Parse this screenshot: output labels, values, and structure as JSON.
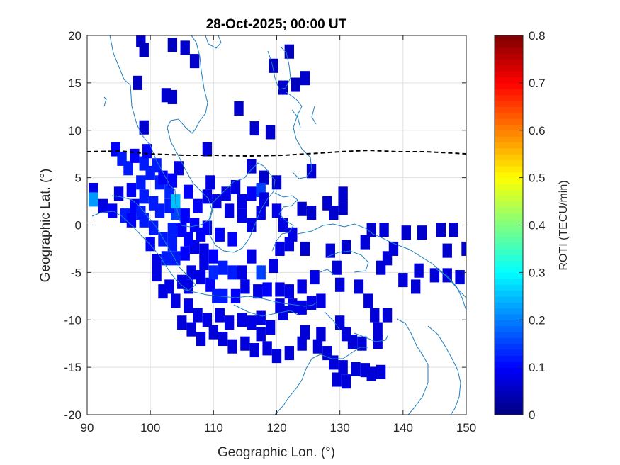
{
  "chart_data": {
    "type": "heatmap",
    "title": "28-Oct-2025; 00:00 UT",
    "xlabel": "Geographic Lon. (°)",
    "ylabel": "Geographic Lat. (°)",
    "xlim": [
      90,
      150
    ],
    "ylim": [
      -20,
      20
    ],
    "xticks": [
      90,
      100,
      110,
      120,
      130,
      140,
      150
    ],
    "yticks": [
      -20,
      -15,
      -10,
      -5,
      0,
      5,
      10,
      15,
      20
    ],
    "grid": true,
    "colorbar": {
      "label": "ROTI (TECU/min)",
      "colormap": "jet",
      "range": [
        0,
        0.8
      ],
      "ticks": [
        "0",
        "0.1",
        "0.2",
        "0.3",
        "0.4",
        "0.5",
        "0.6",
        "0.7",
        "0.8"
      ]
    },
    "cell_size_deg": [
      1.5,
      1.5
    ],
    "cells": [
      [
        98.5,
        19.5,
        0.06
      ],
      [
        99,
        18.5,
        0.05
      ],
      [
        103.5,
        19,
        0.05
      ],
      [
        105.5,
        18.7,
        0.06
      ],
      [
        107,
        17.3,
        0.06
      ],
      [
        98,
        15,
        0.05
      ],
      [
        102.5,
        13.7,
        0.06
      ],
      [
        103.5,
        13.5,
        0.06
      ],
      [
        99,
        10.3,
        0.06
      ],
      [
        109,
        8,
        0.07
      ],
      [
        116.5,
        10.2,
        0.06
      ],
      [
        114,
        12.3,
        0.06
      ],
      [
        119.5,
        16.8,
        0.05
      ],
      [
        122,
        18.3,
        0.05
      ],
      [
        123,
        14.8,
        0.05
      ],
      [
        121,
        14.5,
        0.06
      ],
      [
        124.5,
        15.5,
        0.06
      ],
      [
        119,
        9.8,
        0.06
      ],
      [
        125.5,
        5.7,
        0.07
      ],
      [
        116,
        6.2,
        0.07
      ],
      [
        118,
        5,
        0.06
      ],
      [
        120,
        4.5,
        0.06
      ],
      [
        128,
        2.3,
        0.06
      ],
      [
        130.5,
        3.3,
        0.06
      ],
      [
        130.5,
        1.8,
        0.06
      ],
      [
        129,
        1.3,
        0.06
      ],
      [
        124,
        1.7,
        0.06
      ],
      [
        125.5,
        1.3,
        0.06
      ],
      [
        124.5,
        -2.5,
        0.06
      ],
      [
        128.5,
        -2.7,
        0.07
      ],
      [
        129.5,
        -4.5,
        0.07
      ],
      [
        131,
        -2.3,
        0.06
      ],
      [
        134,
        -1.8,
        0.07
      ],
      [
        135,
        -0.5,
        0.06
      ],
      [
        137,
        -0.5,
        0.07
      ],
      [
        138.5,
        -2.5,
        0.07
      ],
      [
        140.5,
        -0.8,
        0.06
      ],
      [
        143,
        -0.8,
        0.06
      ],
      [
        146,
        -0.5,
        0.06
      ],
      [
        148,
        -0.5,
        0.06
      ],
      [
        150,
        -2.5,
        0.06
      ],
      [
        147,
        -2.7,
        0.06
      ],
      [
        136.5,
        -4.5,
        0.07
      ],
      [
        137.5,
        -3.5,
        0.07
      ],
      [
        142.5,
        -4.8,
        0.07
      ],
      [
        145,
        -5.3,
        0.07
      ],
      [
        147,
        -5.3,
        0.07
      ],
      [
        149,
        -5.5,
        0.07
      ],
      [
        140,
        -5.8,
        0.07
      ],
      [
        142,
        -6.5,
        0.07
      ],
      [
        130,
        -6.3,
        0.07
      ],
      [
        133,
        -6.5,
        0.07
      ],
      [
        134.5,
        -8,
        0.07
      ],
      [
        135.5,
        -9.5,
        0.07
      ],
      [
        137.5,
        -9.5,
        0.07
      ],
      [
        136,
        -11,
        0.07
      ],
      [
        133.5,
        -12.5,
        0.07
      ],
      [
        136,
        -12.3,
        0.07
      ],
      [
        130,
        -10.3,
        0.07
      ],
      [
        131,
        -11.5,
        0.07
      ],
      [
        132,
        -12.3,
        0.07
      ],
      [
        127,
        -11.5,
        0.07
      ],
      [
        126.5,
        -12.8,
        0.07
      ],
      [
        128,
        -13.5,
        0.07
      ],
      [
        129,
        -14.5,
        0.07
      ],
      [
        130.5,
        -15,
        0.07
      ],
      [
        129.5,
        -16.3,
        0.07
      ],
      [
        131,
        -16.5,
        0.07
      ],
      [
        132.5,
        -15.2,
        0.07
      ],
      [
        134,
        -15.3,
        0.07
      ],
      [
        135,
        -15.7,
        0.07
      ],
      [
        136.5,
        -15.5,
        0.07
      ],
      [
        124,
        -12.5,
        0.07
      ],
      [
        124.5,
        -11.3,
        0.07
      ],
      [
        122,
        -13.5,
        0.07
      ],
      [
        120,
        -13.8,
        0.07
      ],
      [
        118.5,
        -13,
        0.07
      ],
      [
        117.5,
        -11.5,
        0.07
      ],
      [
        116.5,
        -13.2,
        0.07
      ],
      [
        115,
        -12.5,
        0.07
      ],
      [
        113,
        -12.8,
        0.07
      ],
      [
        111.5,
        -12,
        0.07
      ],
      [
        110,
        -11.3,
        0.07
      ],
      [
        108,
        -12,
        0.07
      ],
      [
        106.5,
        -11,
        0.07
      ],
      [
        105,
        -10.3,
        0.07
      ],
      [
        107.5,
        -9.5,
        0.08
      ],
      [
        109,
        -10,
        0.08
      ],
      [
        111,
        -9.5,
        0.08
      ],
      [
        112.5,
        -10.3,
        0.08
      ],
      [
        114.5,
        -10,
        0.08
      ],
      [
        116,
        -10.3,
        0.08
      ],
      [
        117.5,
        -9.8,
        0.08
      ],
      [
        119,
        -10.8,
        0.08
      ],
      [
        121,
        -9.3,
        0.08
      ],
      [
        122.5,
        -8.5,
        0.08
      ],
      [
        124,
        -8.7,
        0.08
      ],
      [
        125.5,
        -8.2,
        0.08
      ],
      [
        127,
        -8,
        0.08
      ],
      [
        126,
        -5.5,
        0.08
      ],
      [
        124,
        -6.5,
        0.08
      ],
      [
        122,
        -7,
        0.08
      ],
      [
        120.5,
        -6.8,
        0.08
      ],
      [
        118.5,
        -6.8,
        0.1
      ],
      [
        117,
        -7,
        0.08
      ],
      [
        115,
        -6.5,
        0.08
      ],
      [
        113.5,
        -7.5,
        0.1
      ],
      [
        111.5,
        -7.5,
        0.12
      ],
      [
        109.5,
        -6.3,
        0.1
      ],
      [
        108,
        -5.5,
        0.08
      ],
      [
        106.5,
        -5,
        0.08
      ],
      [
        105,
        -6,
        0.08
      ],
      [
        103,
        -6.5,
        0.08
      ],
      [
        101,
        -5.2,
        0.08
      ],
      [
        102,
        -7,
        0.08
      ],
      [
        104,
        -8,
        0.08
      ],
      [
        106,
        -8.5,
        0.08
      ],
      [
        101,
        -3.8,
        0.08
      ],
      [
        102.5,
        -3.5,
        0.12
      ],
      [
        104,
        -3.5,
        0.12
      ],
      [
        105.5,
        -3,
        0.1
      ],
      [
        107,
        -2.3,
        0.08
      ],
      [
        108.5,
        -2.7,
        0.08
      ],
      [
        110,
        -3.3,
        0.1
      ],
      [
        111.5,
        -4.5,
        0.12
      ],
      [
        113,
        -5,
        0.12
      ],
      [
        114.5,
        -5,
        0.08
      ],
      [
        116,
        -3.3,
        0.08
      ],
      [
        117.5,
        -5,
        0.15
      ],
      [
        119.5,
        -4.3,
        0.08
      ],
      [
        120.5,
        -2.5,
        0.08
      ],
      [
        122,
        -2,
        0.08
      ],
      [
        121,
        0,
        0.08
      ],
      [
        122.5,
        -1,
        0.08
      ],
      [
        120,
        1.5,
        0.08
      ],
      [
        117.5,
        1.3,
        0.08
      ],
      [
        116,
        0,
        0.08
      ],
      [
        114.5,
        1,
        0.08
      ],
      [
        113,
        -1.5,
        0.1
      ],
      [
        111,
        -1,
        0.1
      ],
      [
        109,
        -0.3,
        0.1
      ],
      [
        107,
        0,
        0.1
      ],
      [
        105.5,
        1,
        0.1
      ],
      [
        104,
        1.3,
        0.15
      ],
      [
        103,
        2,
        0.12
      ],
      [
        101.5,
        1.5,
        0.12
      ],
      [
        100.5,
        2.3,
        0.12
      ],
      [
        99,
        3,
        0.12
      ],
      [
        97.5,
        2,
        0.1
      ],
      [
        96,
        1,
        0.12
      ],
      [
        94,
        1.5,
        0.1
      ],
      [
        92.5,
        2,
        0.08
      ],
      [
        91,
        3.7,
        0.08
      ],
      [
        91,
        2.7,
        0.22
      ],
      [
        95,
        3.3,
        0.08
      ],
      [
        97,
        3.7,
        0.1
      ],
      [
        98.5,
        4.5,
        0.12
      ],
      [
        100,
        5.5,
        0.12
      ],
      [
        101.5,
        4.5,
        0.12
      ],
      [
        103,
        3.5,
        0.13
      ],
      [
        104,
        2.5,
        0.25
      ],
      [
        103.5,
        -0.5,
        0.12
      ],
      [
        102,
        -1.5,
        0.12
      ],
      [
        100.5,
        -0.3,
        0.12
      ],
      [
        99,
        0.5,
        0.12
      ],
      [
        100,
        -2,
        0.1
      ],
      [
        106,
        -1.5,
        0.1
      ],
      [
        108,
        -1,
        0.1
      ],
      [
        94.5,
        8,
        0.1
      ],
      [
        95.5,
        7,
        0.12
      ],
      [
        96.5,
        6,
        0.12
      ],
      [
        97.5,
        7.3,
        0.1
      ],
      [
        99,
        6.5,
        0.12
      ],
      [
        99.5,
        7.8,
        0.1
      ],
      [
        101,
        6.3,
        0.12
      ],
      [
        102,
        5,
        0.1
      ],
      [
        103.5,
        4.7,
        0.1
      ],
      [
        104.5,
        6,
        0.08
      ],
      [
        106,
        3.5,
        0.1
      ],
      [
        107.5,
        2,
        0.1
      ],
      [
        109,
        3,
        0.08
      ],
      [
        110.5,
        2.5,
        0.08
      ],
      [
        112,
        3.3,
        0.08
      ],
      [
        113.5,
        4,
        0.08
      ],
      [
        114.5,
        2.5,
        0.08
      ],
      [
        116,
        3.3,
        0.1
      ],
      [
        117.5,
        3.7,
        0.15
      ],
      [
        118,
        2.7,
        0.08
      ],
      [
        109.5,
        4.5,
        0.08
      ],
      [
        112.5,
        1.5,
        0.08
      ],
      [
        108.5,
        -4,
        0.08
      ],
      [
        110,
        -5,
        0.13
      ],
      [
        106,
        -6.5,
        0.08
      ],
      [
        103.5,
        -2,
        0.12
      ],
      [
        105,
        -0.5,
        0.1
      ],
      [
        98.5,
        1.3,
        0.12
      ],
      [
        97,
        0.5,
        0.1
      ],
      [
        120.5,
        -8.5,
        0.08
      ],
      [
        110.5,
        -7.5,
        0.12
      ]
    ]
  }
}
